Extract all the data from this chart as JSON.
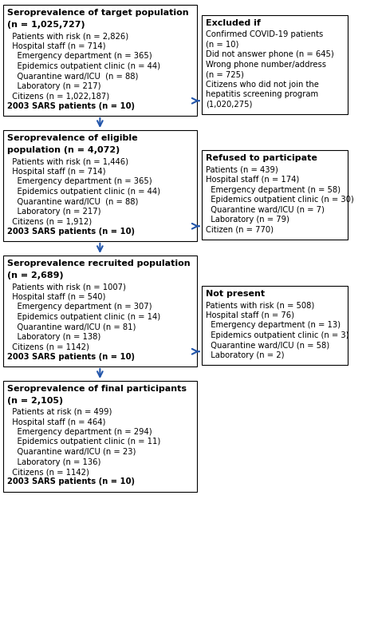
{
  "left_boxes": [
    {
      "title_line1": "Seroprevalence of target population",
      "title_line2": "(n = 1,025,727)",
      "lines": [
        "  Patients with risk (n = 2,826)",
        "  Hospital staff (n = 714)",
        "    Emergency department (n = 365)",
        "    Epidemics outpatient clinic (n = 44)",
        "    Quarantine ward/ICU  (n = 88)",
        "    Laboratory (n = 217)",
        "  Citizens (n = 1,022,187)",
        "2003 SARS patients (n = 10)"
      ],
      "line_bold": [
        false,
        false,
        false,
        false,
        false,
        false,
        false,
        true
      ]
    },
    {
      "title_line1": "Seroprevalence of eligible",
      "title_line2": "population (n = 4,072)",
      "lines": [
        "  Patients with risk (n = 1,446)",
        "  Hospital staff (n = 714)",
        "    Emergency department (n = 365)",
        "    Epidemics outpatient clinic (n = 44)",
        "    Quarantine ward/ICU  (n = 88)",
        "    Laboratory (n = 217)",
        "  Citizens (n = 1,912)",
        "2003 SARS patients (n = 10)"
      ],
      "line_bold": [
        false,
        false,
        false,
        false,
        false,
        false,
        false,
        true
      ]
    },
    {
      "title_line1": "Seroprevalence recruited population",
      "title_line2": "(n = 2,689)",
      "lines": [
        "  Patients with risk (n = 1007)",
        "  Hospital staff (n = 540)",
        "    Emergency department (n = 307)",
        "    Epidemics outpatient clinic (n = 14)",
        "    Quarantine ward/ICU (n = 81)",
        "    Laboratory (n = 138)",
        "  Citizens (n = 1142)",
        "2003 SARS patients (n = 10)"
      ],
      "line_bold": [
        false,
        false,
        false,
        false,
        false,
        false,
        false,
        true
      ]
    },
    {
      "title_line1": "Seroprevalence of final participants",
      "title_line2": "(n = 2,105)",
      "lines": [
        "  Patients at risk (n = 499)",
        "  Hospital staff (n = 464)",
        "    Emergency department (n = 294)",
        "    Epidemics outpatient clinic (n = 11)",
        "    Quarantine ward/ICU (n = 23)",
        "    Laboratory (n = 136)",
        "  Citizens (n = 1142)",
        "2003 SARS patients (n = 10)"
      ],
      "line_bold": [
        false,
        false,
        false,
        false,
        false,
        false,
        false,
        true
      ]
    }
  ],
  "right_boxes": [
    {
      "title": "Excluded if",
      "lines": [
        "Confirmed COVID-19 patients",
        "(n = 10)",
        "Did not answer phone (n = 645)",
        "Wrong phone number/address",
        "(n = 725)",
        "Citizens who did not join the",
        "hepatitis screening program",
        "(1,020,275)"
      ]
    },
    {
      "title": "Refused to participate",
      "lines": [
        "Patients (n = 439)",
        "Hospital staff (n = 174)",
        "  Emergency department (n = 58)",
        "  Epidemics outpatient clinic (n = 30)",
        "  Quarantine ward/ICU (n = 7)",
        "  Laboratory (n = 79)",
        "Citizen (n = 770)"
      ]
    },
    {
      "title": "Not present",
      "lines": [
        "Patients with risk (n = 508)",
        "Hospital staff (n = 76)",
        "  Emergency department (n = 13)",
        "  Epidemics outpatient clinic (n = 3)",
        "  Quarantine ward/ICU (n = 58)",
        "  Laboratory (n = 2)"
      ]
    }
  ],
  "arrow_color": "#2255aa",
  "box_border_color": "#000000",
  "bg_color": "#ffffff"
}
